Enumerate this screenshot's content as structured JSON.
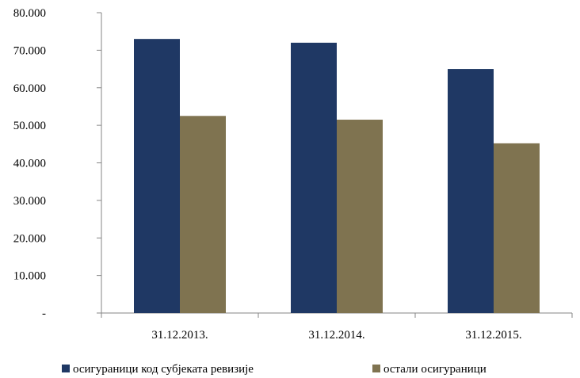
{
  "chart_data": {
    "type": "bar",
    "categories": [
      "31.12.2013.",
      "31.12.2014.",
      "31.12.2015."
    ],
    "series": [
      {
        "name": "осигураници код субјеката ревизије",
        "values": [
          73000,
          72000,
          65000
        ],
        "color": "#1f3864"
      },
      {
        "name": "остали осигураници",
        "values": [
          52500,
          51500,
          45200
        ],
        "color": "#7f7350"
      }
    ],
    "ylim": [
      0,
      80000
    ],
    "y_ticks": [
      {
        "value": 0,
        "label": "-"
      },
      {
        "value": 10000,
        "label": "10.000"
      },
      {
        "value": 20000,
        "label": "20.000"
      },
      {
        "value": 30000,
        "label": "30.000"
      },
      {
        "value": 40000,
        "label": "40.000"
      },
      {
        "value": 50000,
        "label": "50.000"
      },
      {
        "value": 60000,
        "label": "60.000"
      },
      {
        "value": 70000,
        "label": "70.000"
      },
      {
        "value": 80000,
        "label": "80.000"
      }
    ],
    "grid": false,
    "legend_position": "bottom",
    "title": "",
    "xlabel": "",
    "ylabel": ""
  }
}
